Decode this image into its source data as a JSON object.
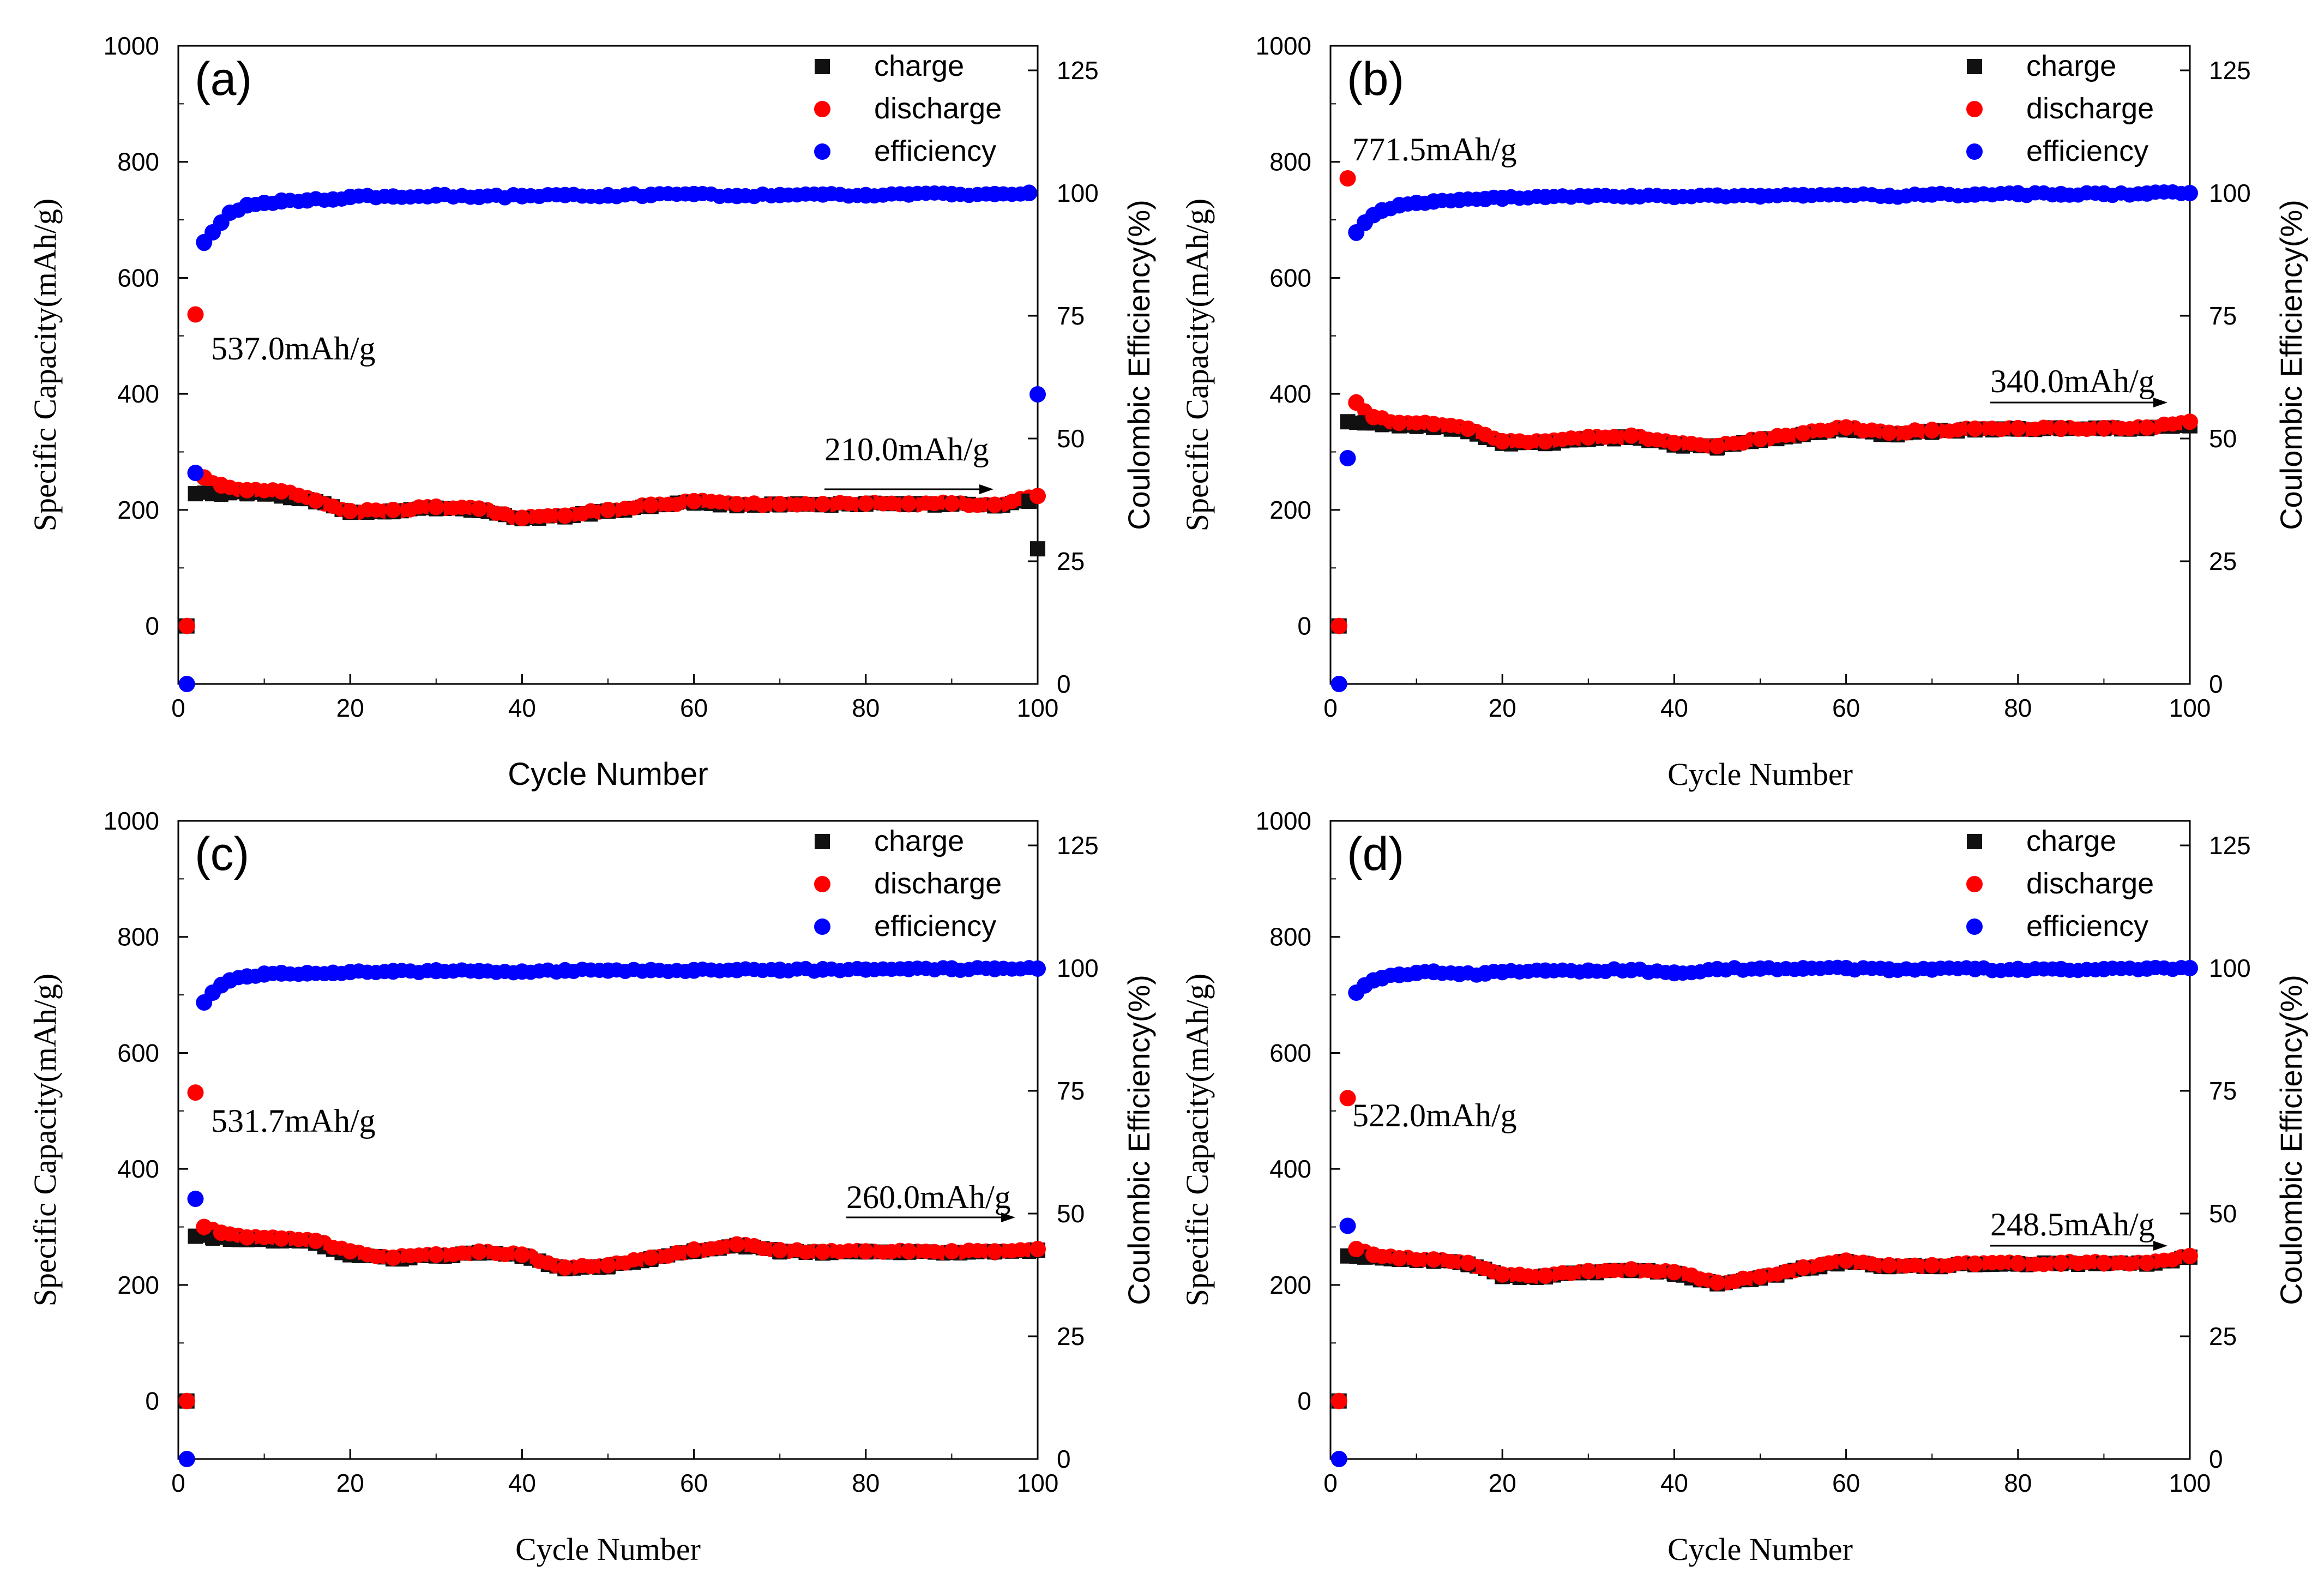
{
  "chart_data": [
    {
      "type": "scatter",
      "panel_label": "(a)",
      "xlabel": "Cycle Number",
      "ylabel": "Specific Capacity(mAh/g)",
      "y2label": "Coulombic Efficiency(%)",
      "xlim": [
        0,
        100
      ],
      "ylim": [
        -100,
        1000
      ],
      "y2lim": [
        0,
        130
      ],
      "xticks": [
        "0",
        "20",
        "40",
        "60",
        "80",
        "100"
      ],
      "yticks": [
        "0",
        "200",
        "400",
        "600",
        "800",
        "1000"
      ],
      "y2ticks": [
        "0",
        "25",
        "50",
        "75",
        "100",
        "125"
      ],
      "legend": [
        "charge",
        "discharge",
        "efficiency"
      ],
      "legend_position": "top-right",
      "annotations": {
        "initial": "537.0mAh/g",
        "final": "210.0mAh/g"
      },
      "series": [
        {
          "name": "charge",
          "axis": "left",
          "color": "#111111",
          "x": [
            1,
            2,
            4,
            8,
            12,
            16,
            20,
            25,
            30,
            35,
            40,
            45,
            50,
            55,
            60,
            65,
            70,
            75,
            80,
            85,
            90,
            95,
            99,
            100
          ],
          "y": [
            0,
            228,
            228,
            228,
            224,
            214,
            196,
            198,
            203,
            199,
            185,
            188,
            198,
            206,
            213,
            208,
            209,
            209,
            210,
            210,
            210,
            207,
            215,
            133
          ]
        },
        {
          "name": "discharge",
          "axis": "left",
          "color": "#ff0000",
          "x": [
            1,
            2,
            3,
            5,
            8,
            12,
            16,
            20,
            25,
            30,
            35,
            40,
            45,
            50,
            55,
            60,
            65,
            70,
            75,
            80,
            85,
            90,
            95,
            100
          ],
          "y": [
            0,
            537,
            256,
            242,
            234,
            232,
            216,
            198,
            200,
            205,
            202,
            186,
            190,
            200,
            208,
            215,
            210,
            210,
            210,
            211,
            211,
            211,
            209,
            224
          ]
        },
        {
          "name": "efficiency",
          "axis": "right",
          "color": "#0000ff",
          "x": [
            1,
            2,
            3,
            4,
            5,
            6,
            8,
            10,
            12,
            15,
            18,
            20,
            25,
            30,
            35,
            40,
            45,
            50,
            55,
            60,
            65,
            70,
            75,
            80,
            85,
            90,
            95,
            99,
            100
          ],
          "y": [
            0,
            43,
            90,
            92,
            94,
            96,
            97.5,
            98,
            98.3,
            98.5,
            98.7,
            99.2,
            99.3,
            99.5,
            99.2,
            99.4,
            99.6,
            99.5,
            99.6,
            99.8,
            99.4,
            99.6,
            99.7,
            99.6,
            99.7,
            99.8,
            99.8,
            100,
            59
          ]
        }
      ]
    },
    {
      "type": "scatter",
      "panel_label": "(b)",
      "xlabel": "Cycle Number",
      "ylabel": "Specific Capacity(mAh/g)",
      "y2label": "Coulombic Efficiency(%)",
      "xlim": [
        0,
        100
      ],
      "ylim": [
        -100,
        1000
      ],
      "y2lim": [
        0,
        130
      ],
      "xticks": [
        "0",
        "20",
        "40",
        "60",
        "80",
        "100"
      ],
      "yticks": [
        "0",
        "200",
        "400",
        "600",
        "800",
        "1000"
      ],
      "y2ticks": [
        "0",
        "25",
        "50",
        "75",
        "100",
        "125"
      ],
      "legend": [
        "charge",
        "discharge",
        "efficiency"
      ],
      "legend_position": "top-right",
      "annotations": {
        "initial": "771.5mAh/g",
        "final": "340.0mAh/g"
      },
      "series": [
        {
          "name": "charge",
          "axis": "left",
          "color": "#111111",
          "x": [
            1,
            2,
            4,
            8,
            12,
            16,
            20,
            25,
            30,
            35,
            40,
            45,
            50,
            55,
            60,
            65,
            70,
            75,
            80,
            85,
            90,
            95,
            100
          ],
          "y": [
            0,
            352,
            350,
            345,
            342,
            335,
            315,
            315,
            322,
            325,
            312,
            308,
            320,
            330,
            338,
            330,
            335,
            338,
            340,
            340,
            340,
            340,
            345
          ]
        },
        {
          "name": "discharge",
          "axis": "left",
          "color": "#ff0000",
          "x": [
            1,
            2,
            3,
            5,
            8,
            12,
            16,
            20,
            25,
            30,
            35,
            40,
            45,
            50,
            55,
            60,
            65,
            70,
            75,
            80,
            85,
            90,
            95,
            100
          ],
          "y": [
            0,
            771.5,
            385,
            360,
            350,
            348,
            340,
            318,
            318,
            325,
            328,
            315,
            310,
            322,
            332,
            342,
            333,
            337,
            340,
            341,
            341,
            341,
            342,
            352
          ]
        },
        {
          "name": "efficiency",
          "axis": "right",
          "color": "#0000ff",
          "x": [
            1,
            2,
            3,
            4,
            5,
            6,
            8,
            10,
            12,
            15,
            18,
            20,
            25,
            30,
            35,
            40,
            45,
            50,
            55,
            60,
            65,
            70,
            75,
            80,
            85,
            90,
            95,
            100
          ],
          "y": [
            0,
            46,
            92,
            94,
            95.5,
            96.5,
            97.5,
            98,
            98.3,
            98.6,
            98.8,
            99,
            99.2,
            99.3,
            99.4,
            99.2,
            99.5,
            99.4,
            99.6,
            99.6,
            99.4,
            99.7,
            99.7,
            99.8,
            99.8,
            99.8,
            99.9,
            100
          ]
        }
      ]
    },
    {
      "type": "scatter",
      "panel_label": "(c)",
      "xlabel": "Cycle Number",
      "ylabel": "Specific Capacity(mAh/g)",
      "y2label": "Coulombic Efficiency(%)",
      "xlim": [
        0,
        100
      ],
      "ylim": [
        -100,
        1000
      ],
      "y2lim": [
        0,
        130
      ],
      "xticks": [
        "0",
        "20",
        "40",
        "60",
        "80",
        "100"
      ],
      "yticks": [
        "0",
        "200",
        "400",
        "600",
        "800",
        "1000"
      ],
      "y2ticks": [
        "0",
        "25",
        "50",
        "75",
        "100",
        "125"
      ],
      "legend": [
        "charge",
        "discharge",
        "efficiency"
      ],
      "legend_position": "top-right",
      "annotations": {
        "initial": "531.7mAh/g",
        "final": "260.0mAh/g"
      },
      "series": [
        {
          "name": "charge",
          "axis": "left",
          "color": "#111111",
          "x": [
            1,
            2,
            4,
            8,
            12,
            16,
            20,
            25,
            30,
            35,
            40,
            45,
            50,
            55,
            60,
            65,
            70,
            75,
            80,
            85,
            90,
            95,
            100
          ],
          "y": [
            0,
            284,
            282,
            278,
            276,
            272,
            252,
            245,
            250,
            255,
            250,
            228,
            232,
            245,
            258,
            268,
            258,
            255,
            257,
            257,
            256,
            257,
            260
          ]
        },
        {
          "name": "discharge",
          "axis": "left",
          "color": "#ff0000",
          "x": [
            1,
            2,
            3,
            5,
            8,
            12,
            16,
            20,
            25,
            30,
            35,
            40,
            45,
            50,
            55,
            60,
            65,
            70,
            75,
            80,
            85,
            90,
            95,
            100
          ],
          "y": [
            0,
            531.7,
            300,
            290,
            282,
            280,
            276,
            258,
            247,
            252,
            257,
            252,
            230,
            234,
            247,
            260,
            270,
            260,
            257,
            258,
            258,
            258,
            258,
            262
          ]
        },
        {
          "name": "efficiency",
          "axis": "right",
          "color": "#0000ff",
          "x": [
            1,
            2,
            3,
            4,
            5,
            6,
            8,
            10,
            12,
            15,
            18,
            20,
            25,
            30,
            35,
            40,
            45,
            50,
            55,
            60,
            65,
            70,
            75,
            80,
            85,
            90,
            95,
            100
          ],
          "y": [
            0,
            53,
            93,
            95,
            96.5,
            97.5,
            98.3,
            98.7,
            98.9,
            99,
            99,
            99.2,
            99.3,
            99.4,
            99.4,
            99.3,
            99.5,
            99.5,
            99.6,
            99.6,
            99.6,
            99.5,
            99.7,
            99.7,
            99.8,
            99.8,
            99.8,
            99.9
          ]
        }
      ]
    },
    {
      "type": "scatter",
      "panel_label": "(d)",
      "xlabel": "Cycle Number",
      "ylabel": "Specific Capacity(mAh/g)",
      "y2label": "Coulombic Efficiency(%)",
      "xlim": [
        0,
        100
      ],
      "ylim": [
        -100,
        1000
      ],
      "y2lim": [
        0,
        130
      ],
      "xticks": [
        "0",
        "20",
        "40",
        "60",
        "80",
        "100"
      ],
      "yticks": [
        "0",
        "200",
        "400",
        "600",
        "800",
        "1000"
      ],
      "y2ticks": [
        "0",
        "25",
        "50",
        "75",
        "100",
        "125"
      ],
      "legend": [
        "charge",
        "discharge",
        "efficiency"
      ],
      "legend_position": "top-right",
      "annotations": {
        "initial": "522.0mAh/g",
        "final": "248.5mAh/g"
      },
      "series": [
        {
          "name": "charge",
          "axis": "left",
          "color": "#111111",
          "x": [
            1,
            2,
            4,
            8,
            12,
            16,
            20,
            25,
            30,
            35,
            40,
            45,
            50,
            55,
            60,
            65,
            70,
            75,
            80,
            85,
            90,
            95,
            100
          ],
          "y": [
            0,
            250,
            248,
            244,
            242,
            236,
            215,
            214,
            222,
            225,
            220,
            202,
            212,
            228,
            240,
            232,
            232,
            235,
            236,
            237,
            237,
            236,
            248
          ]
        },
        {
          "name": "discharge",
          "axis": "left",
          "color": "#ff0000",
          "x": [
            1,
            2,
            3,
            5,
            8,
            12,
            16,
            20,
            25,
            30,
            35,
            40,
            45,
            50,
            55,
            60,
            65,
            70,
            75,
            80,
            85,
            90,
            95,
            100
          ],
          "y": [
            0,
            522,
            262,
            252,
            246,
            244,
            238,
            218,
            216,
            224,
            227,
            222,
            204,
            214,
            230,
            242,
            234,
            234,
            236,
            237,
            238,
            238,
            238,
            250
          ]
        },
        {
          "name": "efficiency",
          "axis": "right",
          "color": "#0000ff",
          "x": [
            1,
            2,
            3,
            4,
            5,
            6,
            8,
            10,
            12,
            15,
            18,
            20,
            25,
            30,
            35,
            40,
            45,
            50,
            55,
            60,
            65,
            70,
            75,
            80,
            85,
            90,
            95,
            100
          ],
          "y": [
            0,
            47.5,
            95,
            96.5,
            97.5,
            98,
            98.6,
            99,
            99.2,
            98.8,
            98.9,
            99.2,
            99.5,
            99.5,
            99.6,
            99.1,
            99.8,
            99.9,
            99.9,
            100,
            99.6,
            99.7,
            99.8,
            99.7,
            99.8,
            99.8,
            99.9,
            100
          ]
        }
      ]
    }
  ]
}
